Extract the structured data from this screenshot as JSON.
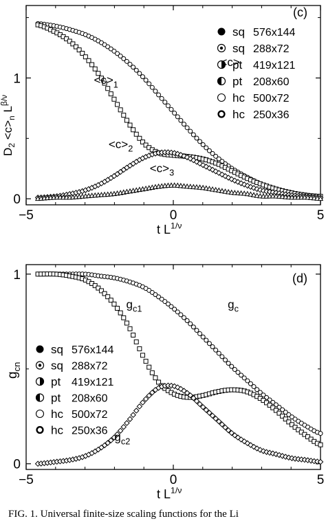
{
  "caption": "FIG. 1.  Universal finite-size scaling functions for the Li",
  "chart_data": [
    {
      "type": "scatter",
      "panel_label": "(c)",
      "ylabel": "D2 <c>n L^{β/ν}",
      "xlabel": "t L^{1/ν}",
      "xlim": [
        -5,
        5
      ],
      "ylim": [
        -0.05,
        1.6
      ],
      "x_ticks": [
        -5,
        0,
        5
      ],
      "y_ticks": [
        0,
        1
      ],
      "grid": false,
      "legend_position": "top-right",
      "legend": [
        {
          "label": "sq",
          "size": "576x144",
          "marker": "filled"
        },
        {
          "label": "sq",
          "size": "288x72",
          "marker": "dot-center"
        },
        {
          "label": "pt",
          "size": "419x121",
          "marker": "half-right"
        },
        {
          "label": "pt",
          "size": "208x60",
          "marker": "half-left"
        },
        {
          "label": "hc",
          "size": "500x72",
          "marker": "open"
        },
        {
          "label": "hc",
          "size": "250x36",
          "marker": "thick-open"
        }
      ],
      "series": [
        {
          "name": "<c>",
          "marker": "circle",
          "x": [
            -4.6,
            -4.0,
            -3.5,
            -3.0,
            -2.5,
            -2.0,
            -1.5,
            -1.0,
            -0.5,
            0.0,
            0.5,
            1.0,
            1.5,
            2.0,
            2.5,
            3.0,
            3.5,
            4.0,
            4.5,
            5.0
          ],
          "y": [
            1.45,
            1.43,
            1.4,
            1.36,
            1.3,
            1.22,
            1.12,
            1.0,
            0.86,
            0.72,
            0.58,
            0.45,
            0.34,
            0.25,
            0.18,
            0.12,
            0.08,
            0.05,
            0.03,
            0.02
          ]
        },
        {
          "name": "<c>1",
          "marker": "square",
          "x": [
            -4.6,
            -4.0,
            -3.5,
            -3.0,
            -2.5,
            -2.0,
            -1.5,
            -1.0,
            -0.5,
            0.0,
            0.5,
            1.0,
            1.5,
            2.0,
            2.5,
            3.0,
            3.5,
            4.0,
            4.5,
            5.0
          ],
          "y": [
            1.44,
            1.38,
            1.3,
            1.18,
            1.02,
            0.82,
            0.62,
            0.46,
            0.38,
            0.36,
            0.35,
            0.33,
            0.29,
            0.23,
            0.17,
            0.12,
            0.08,
            0.05,
            0.03,
            0.02
          ]
        },
        {
          "name": "<c>2",
          "marker": "diamond",
          "x": [
            -4.6,
            -4.0,
            -3.5,
            -3.0,
            -2.5,
            -2.0,
            -1.5,
            -1.0,
            -0.5,
            0.0,
            0.5,
            1.0,
            1.5,
            2.0,
            2.5,
            3.0,
            3.5,
            4.0,
            4.5,
            5.0
          ],
          "y": [
            0.01,
            0.02,
            0.04,
            0.07,
            0.12,
            0.19,
            0.27,
            0.34,
            0.38,
            0.38,
            0.34,
            0.28,
            0.22,
            0.16,
            0.11,
            0.07,
            0.05,
            0.03,
            0.02,
            0.01
          ]
        },
        {
          "name": "<c>3",
          "marker": "triangle",
          "x": [
            -4.6,
            -4.0,
            -3.5,
            -3.0,
            -2.5,
            -2.0,
            -1.5,
            -1.0,
            -0.5,
            0.0,
            0.5,
            1.0,
            1.5,
            2.0,
            2.5,
            3.0,
            3.5,
            4.0,
            4.5,
            5.0
          ],
          "y": [
            0.0,
            0.01,
            0.01,
            0.02,
            0.03,
            0.04,
            0.06,
            0.08,
            0.1,
            0.11,
            0.1,
            0.09,
            0.07,
            0.05,
            0.04,
            0.02,
            0.02,
            0.01,
            0.01,
            0.0
          ]
        }
      ],
      "annotations": [
        {
          "text": "<c>",
          "x": 1.6,
          "y": 1.1
        },
        {
          "text": "<c>1",
          "x": -2.7,
          "y": 0.95
        },
        {
          "text": "<c>2",
          "x": -2.2,
          "y": 0.42
        },
        {
          "text": "<c>3",
          "x": -0.8,
          "y": 0.22
        }
      ]
    },
    {
      "type": "scatter",
      "panel_label": "(d)",
      "ylabel": "gcn",
      "xlabel": "t L^{1/ν}",
      "xlim": [
        -5,
        5
      ],
      "ylim": [
        -0.03,
        1.05
      ],
      "x_ticks": [
        -5,
        0,
        5
      ],
      "y_ticks": [
        0,
        1
      ],
      "grid": false,
      "legend_position": "center-left",
      "legend": [
        {
          "label": "sq",
          "size": "576x144",
          "marker": "filled"
        },
        {
          "label": "sq",
          "size": "288x72",
          "marker": "dot-center"
        },
        {
          "label": "pt",
          "size": "419x121",
          "marker": "half-right"
        },
        {
          "label": "pt",
          "size": "208x60",
          "marker": "half-left"
        },
        {
          "label": "hc",
          "size": "500x72",
          "marker": "open"
        },
        {
          "label": "hc",
          "size": "250x36",
          "marker": "thick-open"
        }
      ],
      "series": [
        {
          "name": "gc",
          "marker": "circle",
          "x": [
            -4.6,
            -4.0,
            -3.5,
            -3.0,
            -2.5,
            -2.0,
            -1.5,
            -1.0,
            -0.5,
            0.0,
            0.5,
            1.0,
            1.5,
            2.0,
            2.5,
            3.0,
            3.5,
            4.0,
            4.5,
            5.0
          ],
          "y": [
            1.0,
            1.0,
            1.0,
            1.0,
            0.99,
            0.98,
            0.96,
            0.93,
            0.88,
            0.82,
            0.75,
            0.67,
            0.59,
            0.51,
            0.44,
            0.37,
            0.31,
            0.25,
            0.2,
            0.16
          ]
        },
        {
          "name": "gc1",
          "marker": "square",
          "x": [
            -4.6,
            -4.0,
            -3.5,
            -3.0,
            -2.5,
            -2.0,
            -1.5,
            -1.0,
            -0.5,
            0.0,
            0.5,
            1.0,
            1.5,
            2.0,
            2.5,
            3.0,
            3.5,
            4.0,
            4.5,
            5.0
          ],
          "y": [
            1.0,
            1.0,
            0.99,
            0.97,
            0.92,
            0.84,
            0.72,
            0.56,
            0.43,
            0.37,
            0.35,
            0.36,
            0.38,
            0.39,
            0.38,
            0.34,
            0.28,
            0.21,
            0.15,
            0.1
          ]
        },
        {
          "name": "gc2",
          "marker": "diamond",
          "x": [
            -4.6,
            -4.0,
            -3.5,
            -3.0,
            -2.5,
            -2.0,
            -1.5,
            -1.0,
            -0.5,
            0.0,
            0.5,
            1.0,
            1.5,
            2.0,
            2.5,
            3.0,
            3.5,
            4.0,
            4.5,
            5.0
          ],
          "y": [
            0.0,
            0.01,
            0.02,
            0.04,
            0.08,
            0.14,
            0.23,
            0.33,
            0.4,
            0.41,
            0.37,
            0.3,
            0.23,
            0.16,
            0.11,
            0.07,
            0.05,
            0.03,
            0.02,
            0.01
          ]
        }
      ],
      "annotations": [
        {
          "text": "gc",
          "x": 1.85,
          "y": 0.82
        },
        {
          "text": "gc1",
          "x": -1.6,
          "y": 0.82
        },
        {
          "text": "gc2",
          "x": -2.0,
          "y": 0.12
        }
      ]
    }
  ]
}
